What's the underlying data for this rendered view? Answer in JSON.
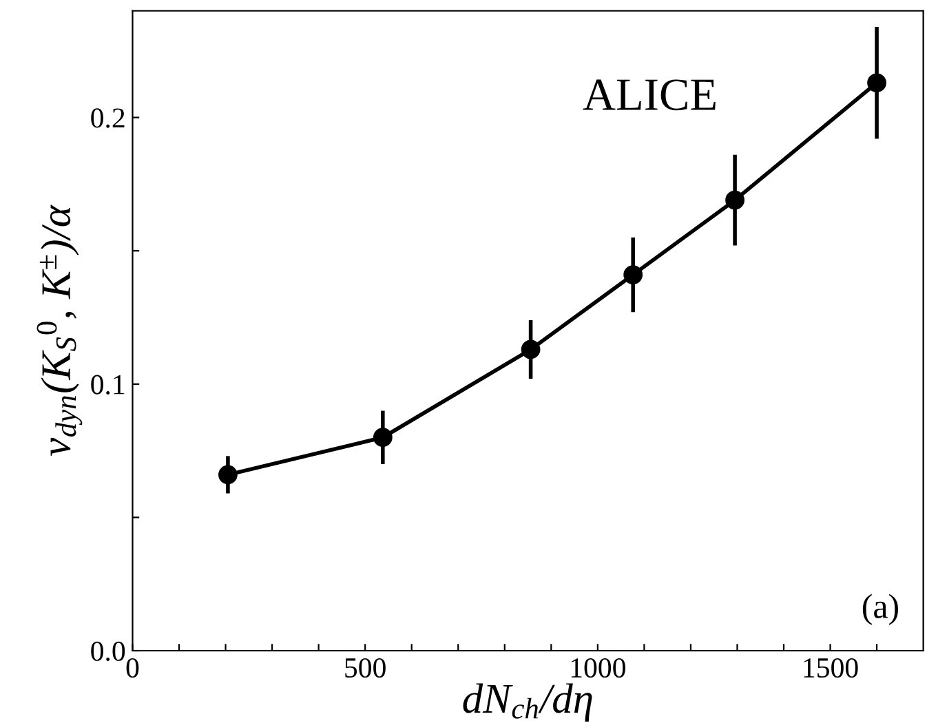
{
  "chart_data": {
    "type": "line",
    "xlabel": "dN$_{ch}$/dη",
    "ylabel": "ν$_{dyn}$(K$_{S}$$^{0}$, K$^{±}$)/α",
    "annotations": [
      "ALICE",
      "(a)"
    ],
    "x": [
      205,
      538,
      856,
      1076,
      1295,
      1600
    ],
    "series": [
      {
        "color": "#000000",
        "values": [
          0.066,
          0.08,
          0.113,
          0.141,
          0.169,
          0.213
        ],
        "errors": [
          0.007,
          0.01,
          0.011,
          0.014,
          0.017,
          0.021
        ]
      }
    ],
    "marker": "circle",
    "line_style": "solid",
    "grid": false,
    "legend": false,
    "xlim": [
      0,
      1700
    ],
    "xticks": [
      0,
      {
        "value": 100,
        "label": null
      },
      {
        "value": 200,
        "label": null
      },
      {
        "value": 300,
        "label": null
      },
      {
        "value": 400,
        "label": null
      },
      500,
      {
        "value": 600,
        "label": null
      },
      {
        "value": 700,
        "label": null
      },
      {
        "value": 800,
        "label": null
      },
      {
        "value": 900,
        "label": null
      },
      1000,
      {
        "value": 1100,
        "label": null
      },
      {
        "value": 1200,
        "label": null
      },
      {
        "value": 1300,
        "label": null
      },
      {
        "value": 1400,
        "label": null
      },
      1500,
      {
        "value": 1600,
        "label": null
      }
    ],
    "ylim": [
      0,
      0.24
    ],
    "yticks": [
      {
        "value": 0,
        "label": "0.0"
      },
      {
        "value": 0.05,
        "label": null
      },
      0.1,
      {
        "value": 0.15,
        "label": null
      },
      0.2
    ]
  }
}
